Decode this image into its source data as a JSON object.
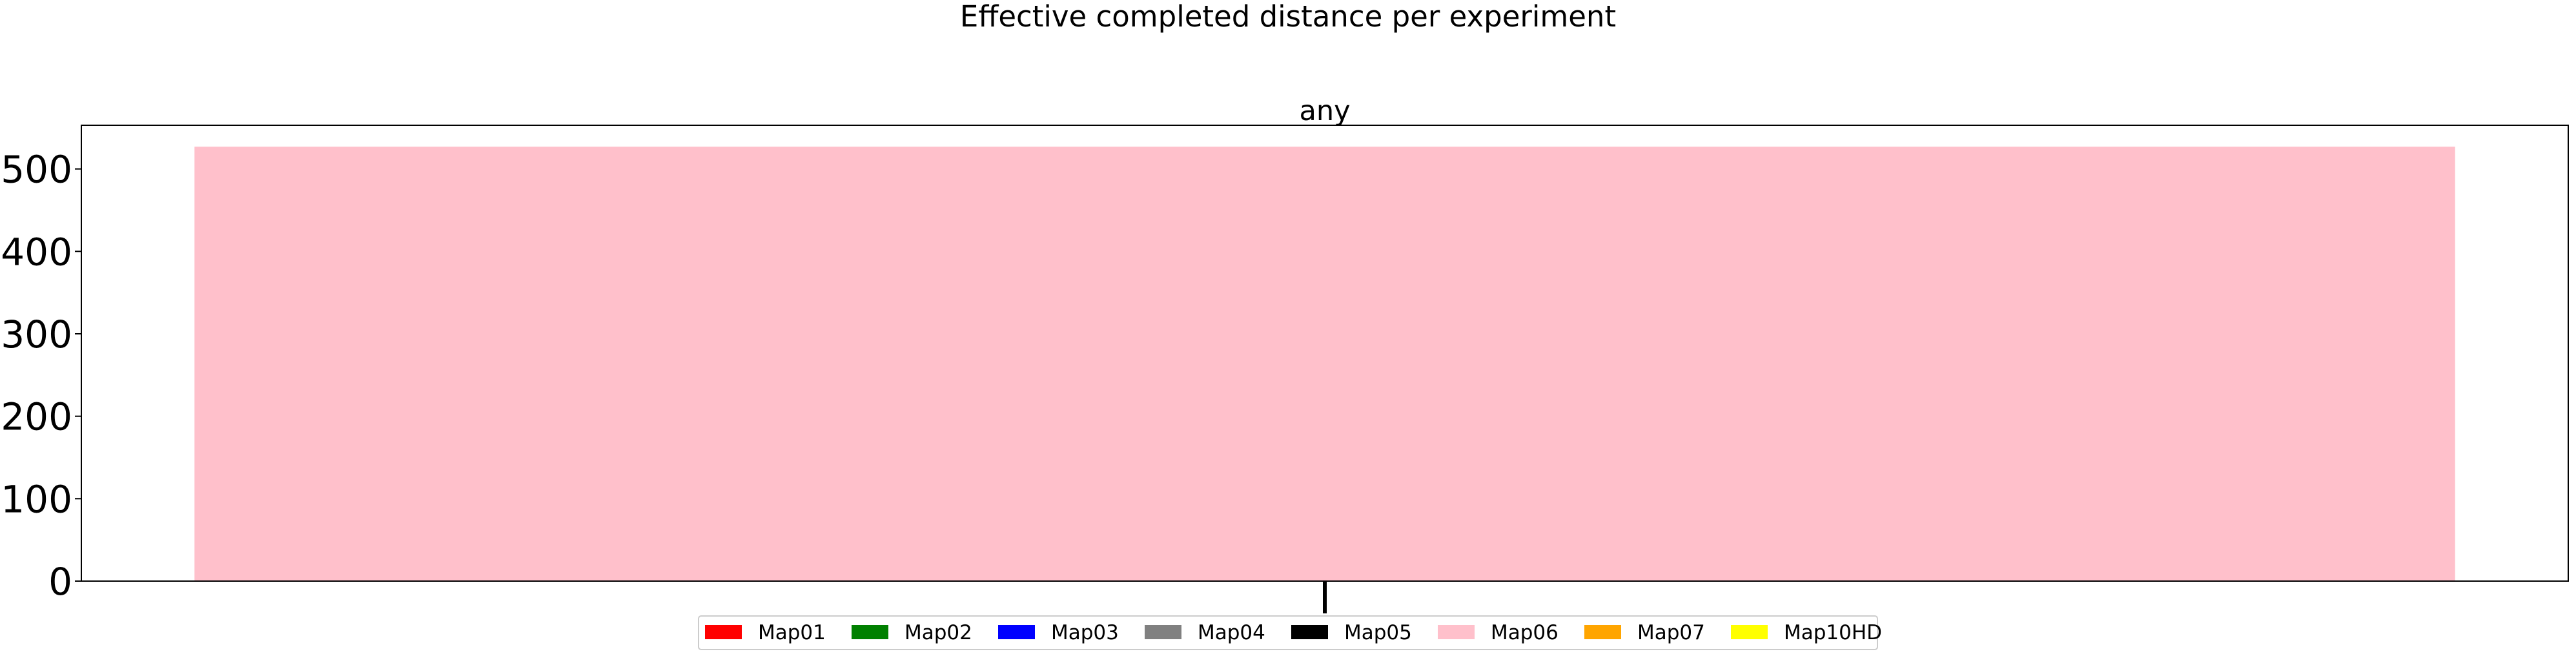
{
  "figure": {
    "suptitle": "Effective completed distance per experiment"
  },
  "chart_data": {
    "type": "bar",
    "title": "any",
    "xlabel": "",
    "ylabel": "",
    "categories": [
      ""
    ],
    "series": [
      {
        "name": "Map01",
        "color": "#ff0000",
        "values": [
          0
        ]
      },
      {
        "name": "Map02",
        "color": "#008000",
        "values": [
          0
        ]
      },
      {
        "name": "Map03",
        "color": "#0000ff",
        "values": [
          0
        ]
      },
      {
        "name": "Map04",
        "color": "#808080",
        "values": [
          0
        ]
      },
      {
        "name": "Map05",
        "color": "#000000",
        "values": [
          0
        ]
      },
      {
        "name": "Map06",
        "color": "#ffc0cb",
        "values": [
          527
        ]
      },
      {
        "name": "Map07",
        "color": "#ffa500",
        "values": [
          0
        ]
      },
      {
        "name": "Map10HD",
        "color": "#ffff00",
        "values": [
          0
        ]
      }
    ],
    "ylim": [
      0,
      553
    ],
    "yticks": [
      0,
      100,
      200,
      300,
      400,
      500
    ],
    "grid": false,
    "legend_position": "bottom-center"
  }
}
